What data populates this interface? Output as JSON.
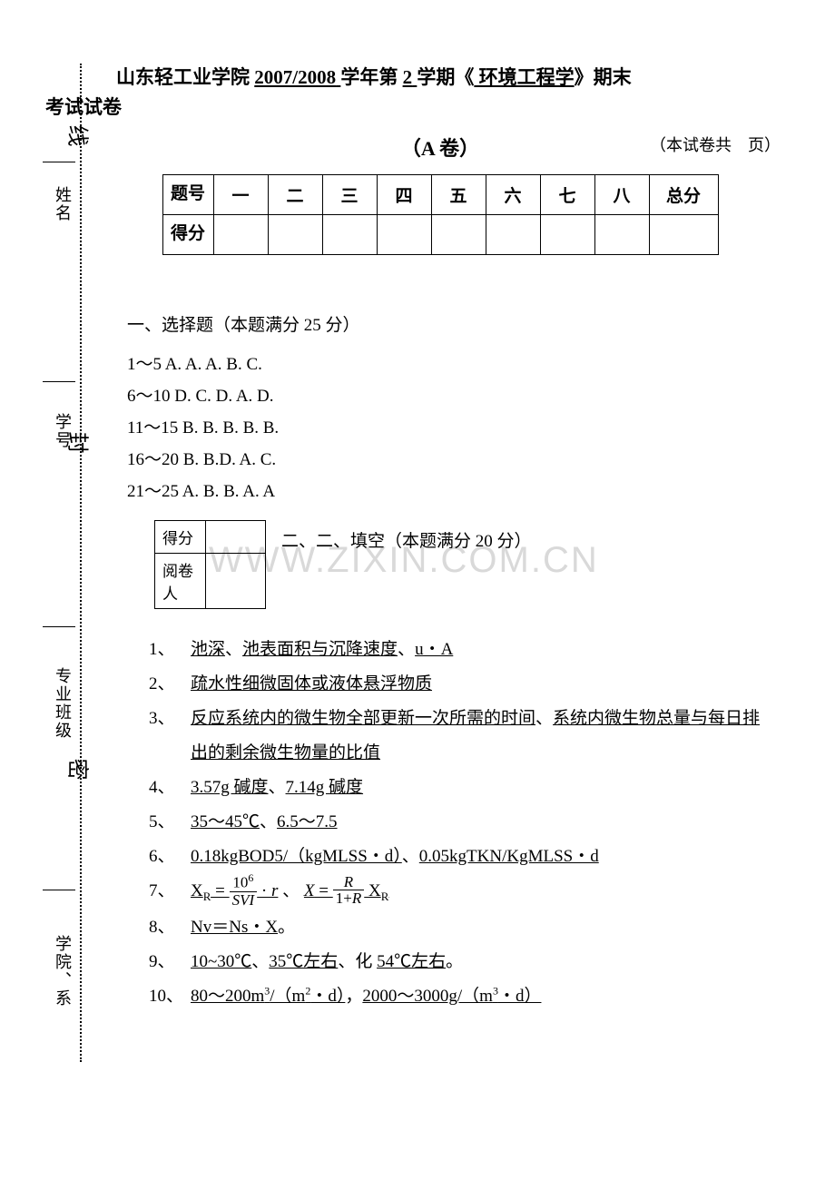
{
  "header": {
    "school": "山东轻工业学院",
    "year": "2007/2008",
    "year_suffix": "学年第",
    "semester": "2",
    "semester_suffix": "学期《",
    "course": " 环境工程学",
    "course_suffix": "》期末",
    "line2": "考试试卷",
    "paper_label": "（A 卷）",
    "page_label": "（本试卷共　页）"
  },
  "score_table": {
    "row_label": "题号",
    "columns": [
      "一",
      "二",
      "三",
      "四",
      "五",
      "六",
      "七",
      "八"
    ],
    "total_label": "总分",
    "score_row_label": "得分"
  },
  "margin": {
    "labels": [
      "姓名",
      "学号",
      "专业班级",
      "学院、系"
    ],
    "chars": [
      "线",
      "封",
      "密"
    ]
  },
  "section1": {
    "title": "一、选择题（本题满分 25 分）",
    "lines": [
      "1～5 A. A. A. B. C.",
      "6～10 D. C. D. A. D.",
      "11～15 B. B. B. B. B.",
      "16～20 B. B.D. A. C.",
      "21～25 A. B. B. A. A"
    ]
  },
  "mini": {
    "r1": "得分",
    "r2": "阅卷人"
  },
  "section2": {
    "title": "二、二、填空（本题满分 20 分）",
    "items": [
      {
        "n": "1、",
        "html": "<span class='u'>池深</span>、<span class='u'>池表面积与沉降速度</span>、<span class='u'>u・A</span>"
      },
      {
        "n": "2、",
        "html": "<span class='u'>疏水性细微固体或液体悬浮物质</span>"
      },
      {
        "n": "3、",
        "html": "<span class='u'>反应系统内的微生物全部更新一次所需的时间</span>、<span class='u'>系统内微生物总量与每日排</span>"
      },
      {
        "n": "",
        "html": "<span class='u'>出的剩余微生物量的比值</span>"
      },
      {
        "n": "4、",
        "html": "<span class='u'>3.57g 碱度</span>、<span class='u'>7.14g 碱度</span>"
      },
      {
        "n": "5、",
        "html": "<span class='u'>35～45℃</span>、<span class='u'>6.5～7.5</span>"
      },
      {
        "n": "6、",
        "html": "<span class='u'>0.18kgBOD5/（kgMLSS・d）</span>、<span class='u'>0.05kgTKN/KgMLSS・d</span>"
      },
      {
        "n": "7、",
        "html": "<span class='u'>X<sub>R</sub> = <span class='frac'><span class='nume'>10<sup>6</sup></span><span class='deno'><i>SVI</i></span></span> · <i>r</i></span> 、 <span class='u'><i>X</i> = <span class='frac'><span class='nume'><i>R</i></span><span class='deno'>1+<i>R</i></span></span> X<sub>R</sub></span>"
      },
      {
        "n": "8、",
        "html": "<span class='u'>Nv＝Ns・X</span>。"
      },
      {
        "n": "9、",
        "html": "<span class='u'>10~30℃</span>、<span class='u'>35℃左右</span>、化 <span class='u'>54℃左右</span>。"
      },
      {
        "n": "10、",
        "html": "<span class='u'>80～200m<sup>3</sup>/（m<sup>2</sup>・d）</span>，<span class='u'>2000～3000g/（m<sup>3</sup>・d）</span>"
      }
    ]
  },
  "watermark": "WWW.ZIXIN.COM.CN",
  "colors": {
    "text": "#000000",
    "bg": "#ffffff",
    "wm": "#d9d9d9"
  }
}
